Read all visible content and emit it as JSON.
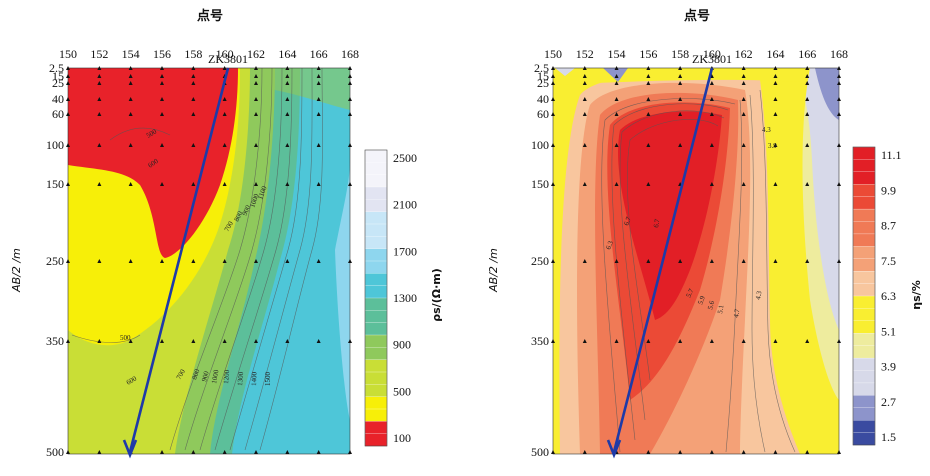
{
  "chart_data": [
    {
      "type": "heatmap",
      "title": "点号",
      "x_ticks": [
        "150",
        "152",
        "154",
        "156",
        "158",
        "160",
        "162",
        "164",
        "166",
        "168"
      ],
      "y_ticks": [
        "2.5",
        "15",
        "25",
        "40",
        "60",
        "100",
        "150",
        "250",
        "350",
        "500"
      ],
      "y_label": "AB/2 /m",
      "borehole": "ZK3801",
      "colorbar_label": "ρs/(Ω·m)",
      "colorbar_ticks": [
        "100",
        "500",
        "900",
        "1300",
        "1700",
        "2100",
        "2500"
      ],
      "contour_labels": [
        "500",
        "500",
        "600",
        "700",
        "800",
        "900",
        "1000",
        "1100",
        "600",
        "700",
        "800",
        "900",
        "1000",
        "1200",
        "1300",
        "1400",
        "1500"
      ],
      "xlim": [
        150,
        168
      ],
      "ylim": [
        2.5,
        500
      ],
      "colors": [
        "#e8222a",
        "#f7ef08",
        "#c9de36",
        "#8fc95c",
        "#5cbf9a",
        "#4ec6d8",
        "#8ed6ee",
        "#c7e6f7",
        "#e2e4f2",
        "#f4f4fa"
      ]
    },
    {
      "type": "heatmap",
      "title": "点号",
      "x_ticks": [
        "150",
        "152",
        "154",
        "156",
        "158",
        "160",
        "162",
        "164",
        "166",
        "168"
      ],
      "y_ticks": [
        "2.5",
        "15",
        "25",
        "40",
        "60",
        "100",
        "150",
        "250",
        "350",
        "500"
      ],
      "y_label": "AB/2 /m",
      "borehole": "ZK3801",
      "colorbar_label": "ηs/%",
      "colorbar_ticks": [
        "11.1",
        "9.9",
        "8.7",
        "7.5",
        "6.3",
        "5.1",
        "3.9",
        "2.7",
        "1.5"
      ],
      "contour_labels": [
        "6.3",
        "6.7",
        "6.7",
        "5.7",
        "5.9",
        "5.6",
        "5.1",
        "4.7",
        "4.3",
        "4.3",
        "3.9"
      ],
      "xlim": [
        150,
        168
      ],
      "ylim": [
        2.5,
        500
      ],
      "colors": [
        "#e21f26",
        "#eb4a36",
        "#f07a56",
        "#f4a177",
        "#f8c69e",
        "#f9ee31",
        "#eeec9e",
        "#d7d9e9",
        "#8d94cb",
        "#3a4ba0"
      ]
    }
  ]
}
